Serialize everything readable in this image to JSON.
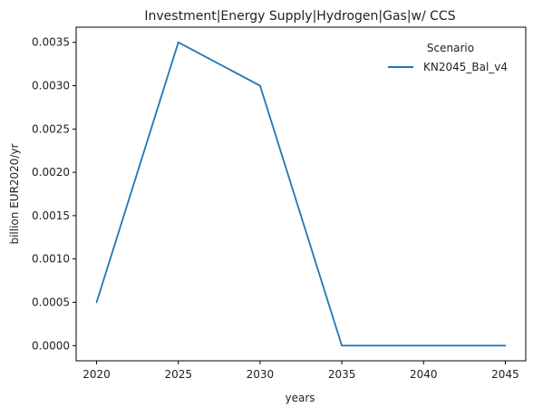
{
  "chart_data": {
    "type": "line",
    "title": "Investment|Energy Supply|Hydrogen|Gas|w/ CCS",
    "xlabel": "years",
    "ylabel": "billion EUR2020/yr",
    "x": [
      2020,
      2025,
      2030,
      2035,
      2040,
      2045
    ],
    "x_ticks": [
      "2020",
      "2025",
      "2030",
      "2035",
      "2040",
      "2045"
    ],
    "y_ticks": [
      "0.0000",
      "0.0005",
      "0.0010",
      "0.0015",
      "0.0020",
      "0.0025",
      "0.0030",
      "0.0035"
    ],
    "xlim": [
      2018.75,
      2046.25
    ],
    "ylim": [
      -0.000175,
      0.003675
    ],
    "grid": false,
    "legend": {
      "title": "Scenario",
      "placement": "top-right"
    },
    "series": [
      {
        "name": "KN2045_Bal_v4",
        "color": "#1f77b4",
        "values": [
          0.0005,
          0.0035,
          0.003,
          0.0,
          0.0,
          0.0
        ]
      }
    ]
  }
}
